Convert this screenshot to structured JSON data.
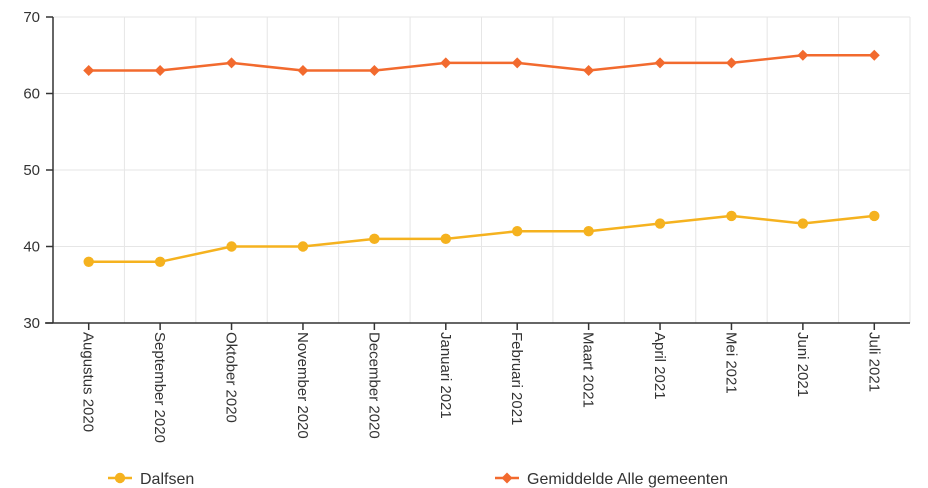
{
  "chart_data": {
    "type": "line",
    "title": "",
    "xlabel": "",
    "ylabel": "",
    "categories": [
      "Augustus 2020",
      "September 2020",
      "Oktober 2020",
      "November 2020",
      "December 2020",
      "Januari 2021",
      "Februari 2021",
      "Maart 2021",
      "April 2021",
      "Mei 2021",
      "Juni 2021",
      "Juli 2021"
    ],
    "ylim": [
      30,
      70
    ],
    "yticks": [
      30,
      40,
      50,
      60,
      70
    ],
    "grid": true,
    "legend_position": "bottom",
    "series": [
      {
        "name": "Dalfsen",
        "color": "#f5b21f",
        "marker": "circle",
        "values": [
          38,
          38,
          40,
          40,
          41,
          41,
          42,
          42,
          43,
          44,
          43,
          44
        ]
      },
      {
        "name": "Gemiddelde Alle gemeenten",
        "color": "#f26a2e",
        "marker": "diamond",
        "values": [
          63,
          63,
          64,
          63,
          63,
          64,
          64,
          63,
          64,
          64,
          65,
          65
        ]
      }
    ]
  }
}
